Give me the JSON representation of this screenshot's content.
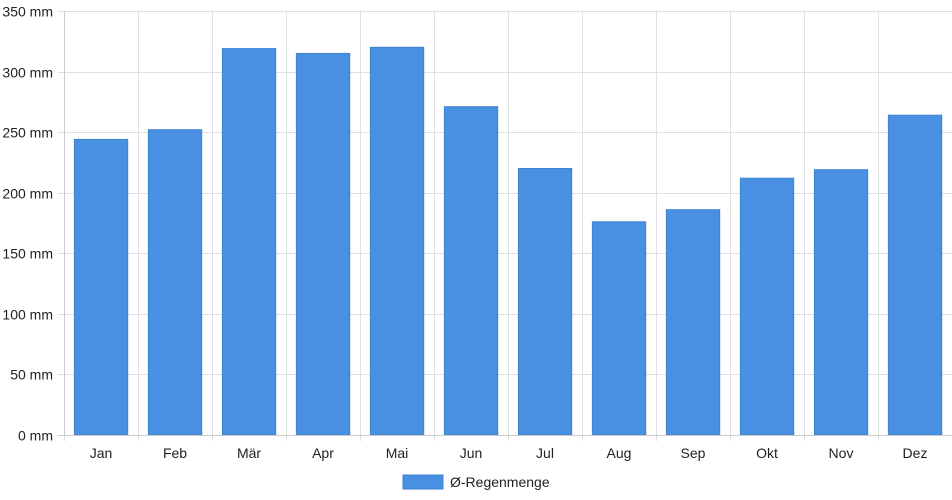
{
  "chart_data": {
    "type": "bar",
    "categories": [
      "Jan",
      "Feb",
      "Mär",
      "Apr",
      "Mai",
      "Jun",
      "Jul",
      "Aug",
      "Sep",
      "Okt",
      "Nov",
      "Dez"
    ],
    "series": [
      {
        "name": "Ø-Regenmenge",
        "values": [
          244,
          252,
          319,
          315,
          320,
          271,
          220,
          176,
          186,
          212,
          219,
          264
        ],
        "color": "#4a90e2"
      }
    ],
    "y_unit": "mm",
    "ylim": [
      0,
      350
    ],
    "y_ticks": [
      0,
      50,
      100,
      150,
      200,
      250,
      300,
      350
    ],
    "y_tick_labels": [
      "0 mm",
      "50 mm",
      "100 mm",
      "150 mm",
      "200 mm",
      "250 mm",
      "300 mm",
      "350 mm"
    ],
    "grid": true,
    "legend_position": "bottom-center",
    "colors": {
      "bar": "#4a90e2",
      "grid": "#e0e0e0",
      "axis": "#cccccc",
      "text": "#222222"
    }
  }
}
